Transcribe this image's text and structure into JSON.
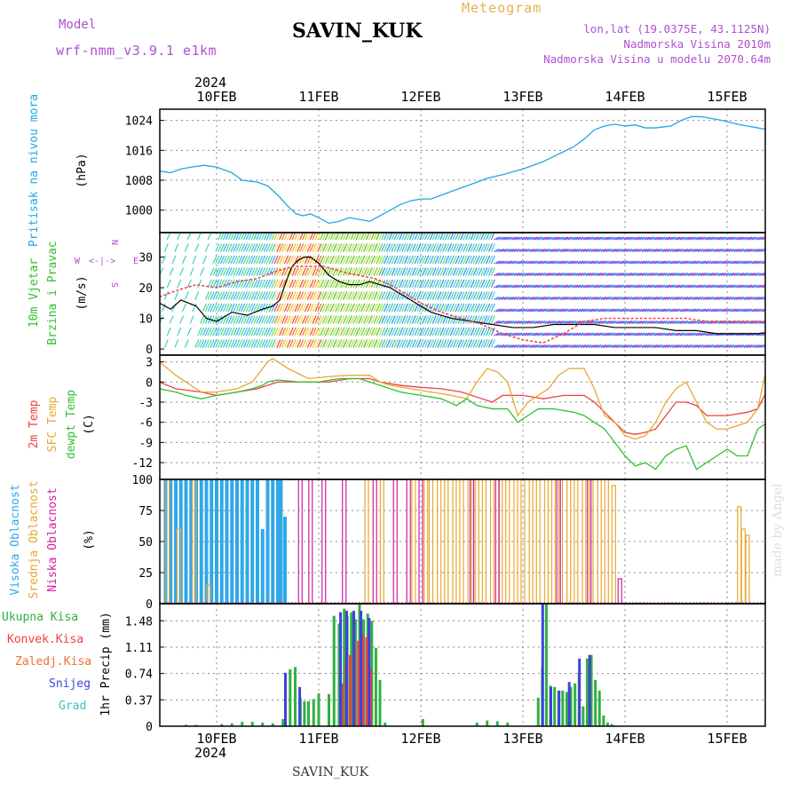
{
  "header": {
    "model_label": "Model",
    "model_name": "wrf-nmm_v3.9.1 e1km",
    "station": "SAVIN_KUK",
    "meteogram_label": "Meteogram",
    "lonlat": "lon,lat (19.0375E, 43.1125N)",
    "altitude": "Nadmorska Visina 2010m",
    "model_altitude": "Nadmorska Visina u modelu 2070.64m",
    "year_top": "2024",
    "year_bottom": "2024",
    "footer_station": "SAVIN_KUK",
    "watermark": "made by Angel"
  },
  "colors": {
    "pressure": "#20a8e0",
    "temp2m": "#f04040",
    "sfc": "#e8a830",
    "dewpt": "#30c030",
    "high_cloud": "#30a8e8",
    "mid_cloud": "#e8a830",
    "low_cloud": "#d020a0",
    "total_precip": "#30b040",
    "conv_precip": "#f04040",
    "freezing": "#f07030",
    "snow": "#4040e0",
    "graupel": "#40c0c0",
    "purple_label": "#b050d0"
  },
  "x_axis": {
    "ticks": [
      "10FEB",
      "11FEB",
      "12FEB",
      "13FEB",
      "14FEB",
      "15FEB"
    ],
    "range_days": [
      -0.56,
      5.52
    ]
  },
  "chart_data": [
    {
      "type": "line",
      "name": "pressure",
      "ylabel_main": "Pritisak na nivou mora",
      "unit": "(hPa)",
      "yticks": [
        "1000",
        "1008",
        "1016",
        "1024"
      ],
      "ylim": [
        994,
        1027
      ],
      "series": [
        {
          "name": "pressure",
          "x": [
            -0.56,
            -0.45,
            -0.35,
            -0.25,
            -0.12,
            0.0,
            0.15,
            0.25,
            0.4,
            0.5,
            0.6,
            0.7,
            0.78,
            0.85,
            0.92,
            1.0,
            1.1,
            1.2,
            1.3,
            1.4,
            1.5,
            1.6,
            1.7,
            1.8,
            1.9,
            2.0,
            2.1,
            2.25,
            2.4,
            2.5,
            2.65,
            2.8,
            3.0,
            3.2,
            3.35,
            3.5,
            3.6,
            3.7,
            3.8,
            3.9,
            4.0,
            4.1,
            4.2,
            4.3,
            4.45,
            4.55,
            4.65,
            4.75,
            4.85,
            4.95,
            5.1,
            5.2,
            5.3,
            5.4,
            5.52
          ],
          "values": [
            1010.5,
            1010,
            1011,
            1011.5,
            1012,
            1011.5,
            1010,
            1008,
            1007.5,
            1006.5,
            1004,
            1001,
            999,
            998.5,
            999,
            998,
            996.5,
            997,
            998,
            997.5,
            997,
            998.5,
            1000,
            1001.5,
            1002.5,
            1003,
            1003,
            1004.5,
            1006,
            1007,
            1008.5,
            1009.5,
            1011,
            1013,
            1015,
            1017,
            1019,
            1021.5,
            1022.5,
            1023,
            1022.5,
            1022.8,
            1022,
            1022,
            1022.5,
            1024,
            1025,
            1025,
            1024.5,
            1024,
            1023,
            1022.5,
            1022,
            1021.5,
            1021
          ]
        }
      ]
    },
    {
      "type": "line",
      "name": "wind",
      "ylabel_main": "10m Vjetar",
      "ylabel_sub": "Brzina i Pravac",
      "unit": "(m/s)",
      "yticks": [
        "0",
        "10",
        "20",
        "30"
      ],
      "ylim": [
        -2,
        38
      ],
      "compass": {
        "w": "W",
        "e": "E",
        "n": "N",
        "s": "S"
      },
      "series": [
        {
          "name": "mean",
          "x": [
            -0.56,
            -0.45,
            -0.35,
            -0.2,
            -0.1,
            0.0,
            0.15,
            0.3,
            0.45,
            0.55,
            0.62,
            0.68,
            0.74,
            0.8,
            0.86,
            0.92,
            1.0,
            1.1,
            1.2,
            1.3,
            1.4,
            1.5,
            1.6,
            1.7,
            1.8,
            1.9,
            2.0,
            2.1,
            2.2,
            2.3,
            2.5,
            2.7,
            2.9,
            3.1,
            3.3,
            3.5,
            3.7,
            3.9,
            4.1,
            4.3,
            4.5,
            4.7,
            4.9,
            5.1,
            5.3,
            5.52
          ],
          "values": [
            15,
            13,
            16,
            14,
            10,
            9,
            12,
            11,
            13,
            14,
            16,
            22,
            27,
            29,
            30,
            30,
            28,
            24,
            22,
            21,
            21,
            22,
            21,
            20,
            18,
            16,
            14,
            12,
            11,
            10,
            9,
            8,
            7,
            7,
            8,
            8,
            8,
            7,
            7,
            7,
            6,
            6,
            5,
            5,
            5,
            6
          ]
        },
        {
          "name": "gust",
          "x": [
            -0.56,
            -0.4,
            -0.2,
            0.0,
            0.2,
            0.4,
            0.55,
            0.65,
            0.75,
            0.85,
            0.95,
            1.05,
            1.15,
            1.25,
            1.4,
            1.55,
            1.7,
            1.85,
            2.0,
            2.2,
            2.4,
            2.6,
            2.8,
            3.0,
            3.2,
            3.4,
            3.6,
            3.8,
            4.0,
            4.2,
            4.4,
            4.6,
            4.8,
            5.0,
            5.2,
            5.4,
            5.52
          ],
          "values": [
            17,
            19,
            21,
            20,
            22,
            23,
            25,
            26,
            27,
            27,
            27,
            27,
            26,
            25,
            24,
            23,
            21,
            18,
            15,
            12,
            10,
            8,
            5,
            3,
            2,
            5,
            9,
            10,
            10,
            10,
            10,
            10,
            9,
            9,
            9,
            9,
            9
          ]
        }
      ]
    },
    {
      "type": "line",
      "name": "temperature",
      "ylabel_temp2m": "2m Temp",
      "ylabel_sfc": "SFC Temp",
      "ylabel_dew": "dewpt Temp",
      "unit": "(C)",
      "yticks": [
        "3",
        "0",
        "-3",
        "-6",
        "-9",
        "-12"
      ],
      "ylim": [
        -14.5,
        4
      ],
      "series": [
        {
          "name": "2m Temp",
          "x": [
            -0.56,
            -0.4,
            -0.3,
            -0.15,
            0.0,
            0.2,
            0.4,
            0.5,
            0.6,
            0.7,
            0.9,
            1.1,
            1.3,
            1.5,
            1.6,
            1.8,
            2.0,
            2.2,
            2.4,
            2.6,
            2.7,
            2.8,
            2.9,
            3.0,
            3.2,
            3.4,
            3.6,
            3.7,
            3.8,
            3.9,
            4.0,
            4.1,
            4.2,
            4.3,
            4.4,
            4.5,
            4.6,
            4.7,
            4.8,
            5.0,
            5.2,
            5.3,
            5.4,
            5.52
          ],
          "values": [
            0,
            -1,
            -1.2,
            -1.5,
            -2,
            -1.5,
            -1,
            -0.5,
            0,
            0,
            0,
            0,
            0.5,
            0.5,
            0,
            -0.5,
            -0.8,
            -1,
            -1.5,
            -2.5,
            -3,
            -2,
            -2,
            -2,
            -2.5,
            -2,
            -2,
            -3,
            -4.5,
            -6,
            -7.5,
            -7.8,
            -7.5,
            -7,
            -5,
            -3,
            -3,
            -3.5,
            -5,
            -5,
            -4.5,
            -4,
            -1,
            1
          ]
        },
        {
          "name": "SFC Temp",
          "x": [
            -0.56,
            -0.4,
            -0.3,
            -0.15,
            0.0,
            0.2,
            0.35,
            0.45,
            0.5,
            0.55,
            0.7,
            0.9,
            1.1,
            1.3,
            1.5,
            1.6,
            1.7,
            1.9,
            2.1,
            2.3,
            2.45,
            2.55,
            2.65,
            2.75,
            2.85,
            2.95,
            3.05,
            3.15,
            3.25,
            3.35,
            3.45,
            3.6,
            3.7,
            3.8,
            3.9,
            4.0,
            4.1,
            4.2,
            4.3,
            4.4,
            4.5,
            4.6,
            4.7,
            4.8,
            4.9,
            5.0,
            5.1,
            5.2,
            5.3,
            5.4,
            5.52
          ],
          "values": [
            3,
            1,
            0,
            -1.5,
            -1.5,
            -1,
            0,
            2,
            3,
            3.5,
            2,
            0.5,
            0.8,
            1,
            1,
            0,
            -0.5,
            -1,
            -1.5,
            -2,
            -2.5,
            0,
            2,
            1.5,
            0,
            -5,
            -3,
            -2,
            -1,
            1,
            2,
            2,
            -1,
            -5,
            -6,
            -8,
            -8.5,
            -8,
            -6,
            -3,
            -1,
            0,
            -3,
            -6,
            -7,
            -7,
            -6.5,
            -6,
            -4,
            3,
            4
          ]
        },
        {
          "name": "dewpt Temp",
          "x": [
            -0.56,
            -0.4,
            -0.3,
            -0.15,
            0.0,
            0.2,
            0.35,
            0.45,
            0.5,
            0.6,
            0.8,
            1.0,
            1.2,
            1.4,
            1.6,
            1.8,
            2.0,
            2.2,
            2.35,
            2.45,
            2.55,
            2.7,
            2.85,
            2.95,
            3.05,
            3.15,
            3.3,
            3.5,
            3.6,
            3.7,
            3.8,
            3.9,
            4.0,
            4.1,
            4.2,
            4.3,
            4.4,
            4.5,
            4.6,
            4.7,
            4.8,
            4.9,
            5.0,
            5.1,
            5.2,
            5.3,
            5.4,
            5.52
          ],
          "values": [
            -1,
            -1.5,
            -2,
            -2.5,
            -2,
            -1.5,
            -1,
            -0.5,
            0,
            0.3,
            0,
            0,
            0.5,
            0.5,
            -0.5,
            -1.5,
            -2,
            -2.5,
            -3.5,
            -2.5,
            -3.5,
            -4,
            -4,
            -6,
            -5,
            -4,
            -4,
            -4.5,
            -5,
            -6,
            -7,
            -9,
            -11,
            -12.5,
            -12,
            -13,
            -11,
            -10,
            -9.5,
            -13,
            -12,
            -11,
            -10,
            -11,
            -11,
            -7,
            -6,
            -6
          ]
        }
      ]
    },
    {
      "type": "bar",
      "name": "cloud",
      "ylabel_high": "Visoka Oblacnost",
      "ylabel_mid": "Srednja Oblacnost",
      "ylabel_low": "Niska Oblacnost",
      "unit": "(%)",
      "yticks": [
        "0",
        "25",
        "50",
        "75",
        "100"
      ],
      "ylim": [
        0,
        100
      ],
      "series": [
        {
          "name": "Visoka Oblacnost",
          "x": [
            -0.5,
            -0.45,
            -0.4,
            -0.35,
            -0.3,
            -0.25,
            -0.2,
            -0.15,
            -0.1,
            -0.05,
            0.0,
            0.05,
            0.1,
            0.15,
            0.2,
            0.25,
            0.3,
            0.35,
            0.4,
            0.45,
            0.5,
            0.55,
            0.6,
            0.63,
            0.67
          ],
          "values": [
            100,
            100,
            100,
            100,
            100,
            100,
            100,
            100,
            100,
            100,
            100,
            100,
            100,
            100,
            100,
            100,
            100,
            100,
            100,
            60,
            100,
            100,
            100,
            100,
            70
          ]
        },
        {
          "name": "Srednja Oblacnost",
          "x": [
            -0.48,
            -0.37,
            -0.22,
            -0.08,
            1.47,
            1.62,
            1.93,
            2.05,
            2.1,
            2.18,
            2.25,
            2.33,
            2.4,
            2.48,
            2.55,
            2.62,
            2.7,
            2.78,
            2.85,
            2.93,
            3.0,
            3.08,
            3.15,
            3.23,
            3.3,
            3.37,
            3.45,
            3.52,
            3.6,
            3.67,
            3.75,
            3.82,
            3.89,
            5.12,
            5.16,
            5.2
          ],
          "values": [
            100,
            60,
            100,
            15,
            100,
            100,
            100,
            100,
            100,
            100,
            100,
            100,
            100,
            100,
            100,
            100,
            100,
            100,
            100,
            100,
            100,
            100,
            100,
            100,
            100,
            100,
            100,
            100,
            100,
            100,
            100,
            100,
            95,
            78,
            60,
            55
          ]
        },
        {
          "name": "Niska Oblacnost",
          "x": [
            0.82,
            0.92,
            1.05,
            1.25,
            1.55,
            1.75,
            1.88,
            2.0,
            2.5,
            2.75,
            3.35,
            3.65,
            3.95
          ],
          "values": [
            100,
            100,
            100,
            100,
            100,
            100,
            100,
            100,
            100,
            100,
            100,
            100,
            20
          ]
        }
      ]
    },
    {
      "type": "bar",
      "name": "precip",
      "legend": [
        "Ukupna Kisa",
        "Konvek.Kisa",
        "Zaledj.Kisa",
        "Snijeg",
        "Grad"
      ],
      "unit": "1hr Precip (mm)",
      "yticks": [
        "0",
        "0.37",
        "0.74",
        "1.11",
        "1.48"
      ],
      "ylim": [
        0,
        1.72
      ],
      "series": [
        {
          "name": "Ukupna Kisa",
          "x": [
            -0.3,
            -0.2,
            0.05,
            0.15,
            0.25,
            0.35,
            0.45,
            0.55,
            0.65,
            0.72,
            0.77,
            0.82,
            0.86,
            0.9,
            0.95,
            1.0,
            1.1,
            1.15,
            1.2,
            1.25,
            1.28,
            1.32,
            1.36,
            1.4,
            1.44,
            1.48,
            1.52,
            1.56,
            1.6,
            1.65,
            2.02,
            2.55,
            2.65,
            2.75,
            2.85,
            3.15,
            3.19,
            3.23,
            3.27,
            3.31,
            3.35,
            3.39,
            3.43,
            3.47,
            3.51,
            3.55,
            3.59,
            3.63,
            3.67,
            3.71,
            3.75,
            3.79,
            3.83,
            3.87
          ],
          "values": [
            0.02,
            0.02,
            0.03,
            0.04,
            0.06,
            0.06,
            0.05,
            0.04,
            0.1,
            0.8,
            0.83,
            0.4,
            0.35,
            0.35,
            0.38,
            0.46,
            0.45,
            1.55,
            1.44,
            1.65,
            1.55,
            1.6,
            1.5,
            1.72,
            1.5,
            1.58,
            1.48,
            1.1,
            0.65,
            0.05,
            0.1,
            0.05,
            0.08,
            0.07,
            0.05,
            0.4,
            0.83,
            1.75,
            0.57,
            0.55,
            0.5,
            0.5,
            0.48,
            0.55,
            0.6,
            0.75,
            0.28,
            0.95,
            1.0,
            0.65,
            0.5,
            0.15,
            0.05,
            0.03
          ]
        },
        {
          "name": "Konvek.Kisa",
          "x": [
            1.22,
            1.26,
            1.3,
            1.34,
            1.38,
            1.42,
            1.46,
            1.5
          ],
          "values": [
            0.6,
            0.9,
            1.0,
            1.1,
            1.2,
            1.3,
            1.25,
            0.8
          ]
        },
        {
          "name": "Snijeg",
          "x": [
            0.7,
            0.84,
            1.24,
            1.3,
            1.37,
            1.44,
            1.52,
            3.22,
            3.3,
            3.38,
            3.48,
            3.58,
            3.68
          ],
          "values": [
            0.75,
            0.55,
            1.6,
            1.62,
            1.62,
            1.62,
            1.52,
            1.75,
            0.55,
            0.5,
            0.62,
            0.95,
            1.0
          ]
        }
      ]
    }
  ]
}
